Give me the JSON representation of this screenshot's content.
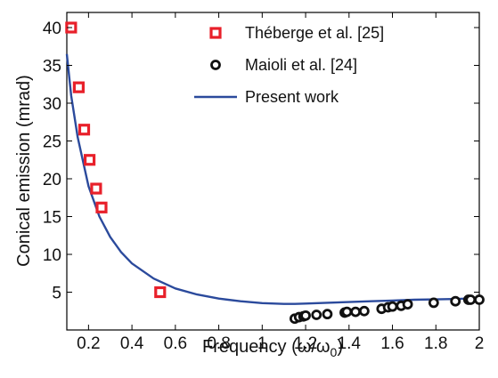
{
  "chart_data": {
    "type": "scatter",
    "xlabel": "Frequency (ω/ω",
    "xlabel_sub": "0",
    "xlabel_end": ")",
    "ylabel": "Conical emission (mrad)",
    "xlim": [
      0.1,
      2.0
    ],
    "ylim": [
      0,
      42
    ],
    "xticks": [
      0.2,
      0.4,
      0.6,
      0.8,
      1.0,
      1.2,
      1.4,
      1.6,
      1.8,
      2.0
    ],
    "xtick_labels": [
      "0.2",
      "0.4",
      "0.6",
      "0.8",
      "1",
      "1.2",
      "1.4",
      "1.6",
      "1.8",
      "2"
    ],
    "yticks": [
      5,
      10,
      15,
      20,
      25,
      30,
      35,
      40
    ],
    "ytick_labels": [
      "5",
      "10",
      "15",
      "20",
      "25",
      "30",
      "35",
      "40"
    ],
    "grid": false,
    "legend_position": "top-right",
    "colors": {
      "theberge": "#e8202a",
      "maioli": "#111111",
      "present": "#2b4a9c"
    },
    "series": [
      {
        "name": "Théberge et al. [25]",
        "kind": "scatter",
        "marker": "square",
        "x": [
          0.12,
          0.155,
          0.18,
          0.205,
          0.235,
          0.26,
          0.53
        ],
        "y": [
          40,
          32.1,
          26.5,
          22.5,
          18.7,
          16.2,
          5.0
        ]
      },
      {
        "name": "Maioli et al. [24]",
        "kind": "scatter",
        "marker": "circle",
        "x": [
          1.15,
          1.17,
          1.19,
          1.2,
          1.25,
          1.3,
          1.38,
          1.39,
          1.43,
          1.47,
          1.55,
          1.58,
          1.6,
          1.64,
          1.67,
          1.79,
          1.89,
          1.95,
          1.96,
          2.0
        ],
        "y": [
          1.5,
          1.7,
          1.8,
          1.9,
          2.0,
          2.1,
          2.3,
          2.4,
          2.4,
          2.5,
          2.8,
          3.0,
          3.1,
          3.2,
          3.4,
          3.6,
          3.8,
          4.0,
          4.0,
          4.0
        ]
      },
      {
        "name": "Present work",
        "kind": "line",
        "x": [
          0.1,
          0.12,
          0.15,
          0.2,
          0.25,
          0.3,
          0.35,
          0.4,
          0.5,
          0.6,
          0.7,
          0.8,
          0.9,
          1.0,
          1.1,
          1.15,
          1.2,
          1.3,
          1.4,
          1.5,
          1.6,
          1.7,
          1.8,
          1.9,
          2.0
        ],
        "y": [
          36.5,
          31.0,
          25.5,
          19.0,
          15.0,
          12.3,
          10.3,
          8.8,
          6.8,
          5.5,
          4.7,
          4.15,
          3.8,
          3.55,
          3.45,
          3.45,
          3.5,
          3.6,
          3.7,
          3.8,
          3.9,
          4.0,
          4.05,
          4.1,
          4.2
        ]
      }
    ]
  }
}
